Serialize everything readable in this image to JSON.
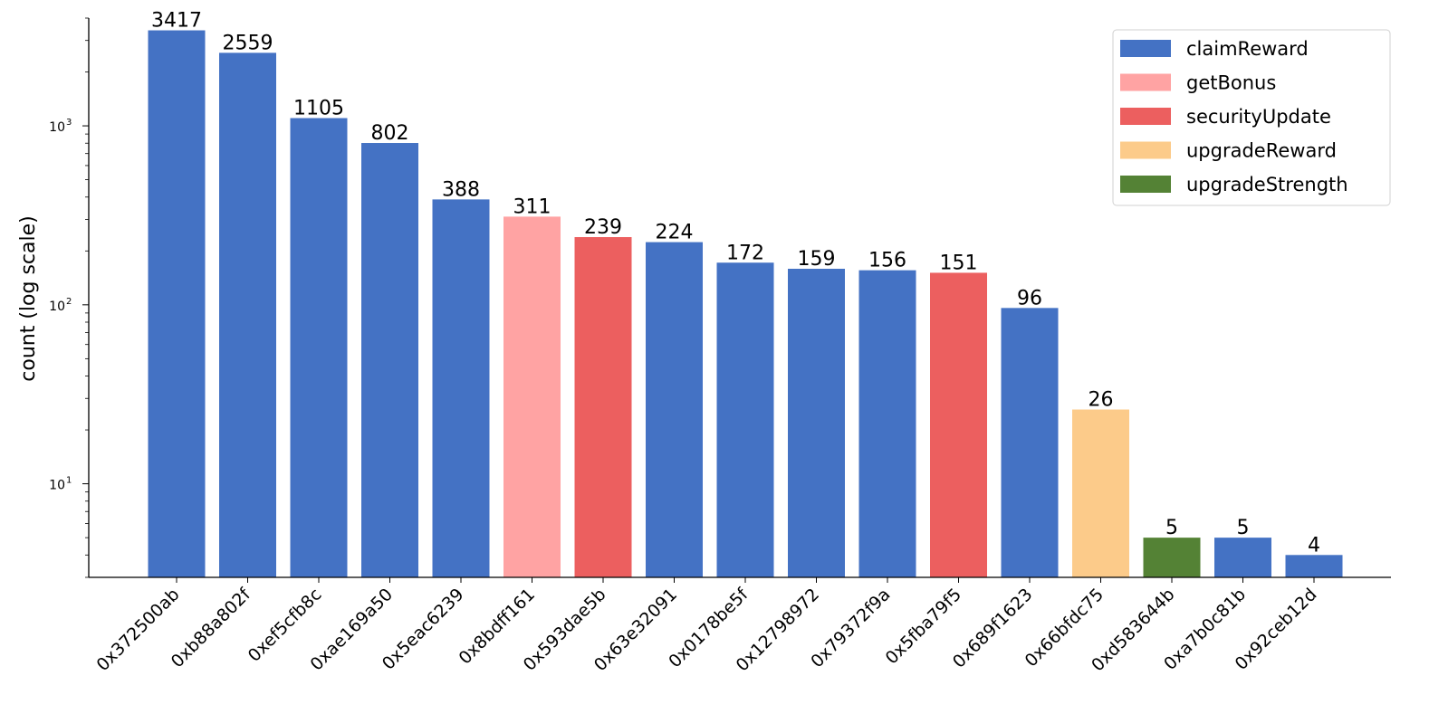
{
  "chart_data": {
    "type": "bar",
    "ylabel": "count (log scale)",
    "y_scale": "log",
    "ylim": [
      3,
      4000
    ],
    "y_ticks": [
      {
        "value": 10,
        "base": "10",
        "exp": "1"
      },
      {
        "value": 100,
        "base": "10",
        "exp": "2"
      },
      {
        "value": 1000,
        "base": "10",
        "exp": "3"
      }
    ],
    "grid": false,
    "legend_position": "top-right",
    "legend": [
      {
        "name": "claimReward",
        "color": "#4472c4"
      },
      {
        "name": "getBonus",
        "color": "#ffa3a3"
      },
      {
        "name": "securityUpdate",
        "color": "#ec5f5f"
      },
      {
        "name": "upgradeReward",
        "color": "#fccb8a"
      },
      {
        "name": "upgradeStrength",
        "color": "#548235"
      }
    ],
    "categories": [
      "0x372500ab",
      "0xb88a802f",
      "0xef5cfb8c",
      "0xae169a50",
      "0x5eac6239",
      "0x8bdff161",
      "0x593dae5b",
      "0x63e32091",
      "0x0178be5f",
      "0x12798972",
      "0x79372f9a",
      "0x5fba79f5",
      "0x689f1623",
      "0x66bfdc75",
      "0xd583644b",
      "0xa7b0c81b",
      "0x92ceb12d"
    ],
    "values": [
      3417,
      2559,
      1105,
      802,
      388,
      311,
      239,
      224,
      172,
      159,
      156,
      151,
      96,
      26,
      5,
      5,
      4
    ],
    "value_labels": [
      "3417",
      "2559",
      "1105",
      "802",
      "388",
      "311",
      "239",
      "224",
      "172",
      "159",
      "156",
      "151",
      "96",
      "26",
      "5",
      "5",
      "4"
    ],
    "bar_groups": [
      "claimReward",
      "claimReward",
      "claimReward",
      "claimReward",
      "claimReward",
      "getBonus",
      "securityUpdate",
      "claimReward",
      "claimReward",
      "claimReward",
      "claimReward",
      "securityUpdate",
      "claimReward",
      "upgradeReward",
      "upgradeStrength",
      "claimReward",
      "claimReward"
    ]
  }
}
